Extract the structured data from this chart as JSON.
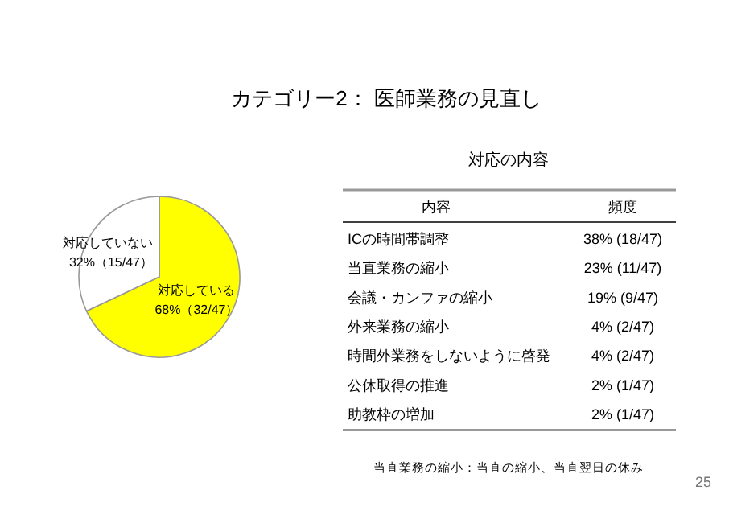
{
  "chart_data": [
    {
      "type": "pie",
      "title": "カテゴリー2： 医師業務の見直し",
      "categories": [
        "対応している",
        "対応していない"
      ],
      "values": [
        68,
        32
      ],
      "colors": [
        "#ffff00",
        "#ffffff"
      ],
      "value_labels": [
        "68%（32/47）",
        "32%（15/47）"
      ]
    },
    {
      "type": "other",
      "title": "対応の内容",
      "annotations": [
        "内容",
        "頻度",
        "当直業務の縮小：当直の縮小、当直翌日の休み",
        "25"
      ],
      "categories": [
        "ICの時間帯調整",
        "当直業務の縮小",
        "会議・カンファの縮小",
        "外来業務の縮小",
        "時間外業務をしないように啓発",
        "公休取得の推進",
        "助教枠の増加"
      ],
      "value_labels": [
        "38% (18/47)",
        "23% (11/47)",
        "19% (9/47)",
        "4% (2/47)",
        "4% (2/47)",
        "2% (1/47)",
        "2% (1/47)"
      ]
    }
  ]
}
